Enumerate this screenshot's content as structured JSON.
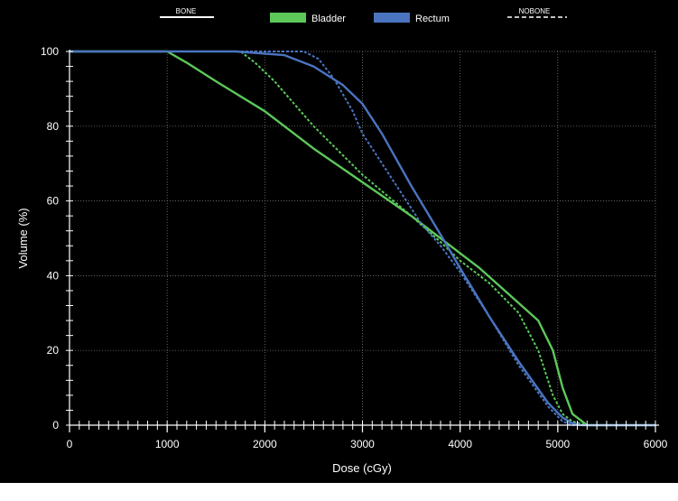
{
  "chart_data": {
    "type": "line",
    "xlabel": "Dose (cGy)",
    "ylabel": "Volume (%)",
    "xlim": [
      0,
      6000
    ],
    "ylim": [
      0,
      100
    ],
    "x_ticks": [
      0,
      1000,
      2000,
      3000,
      4000,
      5000,
      6000
    ],
    "y_ticks": [
      0,
      20,
      40,
      60,
      80,
      100
    ],
    "grid": true,
    "legend": {
      "placement": "top",
      "style_entries": [
        {
          "label": "BONE",
          "style": "solid"
        },
        {
          "label": "NOBONE",
          "style": "dashed"
        }
      ],
      "color_entries": [
        {
          "label": "Bladder",
          "color": "#5cc85a"
        },
        {
          "label": "Rectum",
          "color": "#4a74c0"
        }
      ]
    },
    "colors": {
      "background": "#000000",
      "axis": "#ffffff",
      "grid": "#8a8a8a",
      "bladder": "#5cc85a",
      "rectum": "#4a74c0"
    },
    "series": [
      {
        "organ": "Bladder",
        "plan": "BONE",
        "style": "solid",
        "color": "#5cc85a",
        "x": [
          0,
          1000,
          1200,
          1500,
          2000,
          2500,
          3000,
          3500,
          3900,
          4200,
          4500,
          4800,
          4950,
          5050,
          5150,
          5300,
          5400,
          6000
        ],
        "y": [
          100,
          100,
          97,
          92,
          84,
          74,
          65,
          56,
          48,
          42,
          35,
          28,
          20,
          10,
          3,
          0,
          0,
          0
        ]
      },
      {
        "organ": "Bladder",
        "plan": "NOBONE",
        "style": "dashed",
        "color": "#5cc85a",
        "x": [
          0,
          1750,
          1900,
          2100,
          2500,
          3000,
          3500,
          3800,
          4000,
          4300,
          4600,
          4800,
          4950,
          5050,
          5150,
          5300,
          6000
        ],
        "y": [
          100,
          100,
          97,
          92,
          80,
          67,
          56,
          49,
          44,
          38,
          30,
          20,
          8,
          3,
          1,
          0,
          0
        ]
      },
      {
        "organ": "Rectum",
        "plan": "BONE",
        "style": "solid",
        "color": "#4a74c0",
        "x": [
          0,
          1700,
          2200,
          2500,
          2800,
          3000,
          3200,
          3500,
          3800,
          4000,
          4300,
          4600,
          4900,
          5050,
          5150,
          5250,
          6000
        ],
        "y": [
          100,
          100,
          99,
          96,
          91,
          86,
          78,
          64,
          51,
          42,
          29,
          17,
          6,
          2,
          0.5,
          0,
          0
        ]
      },
      {
        "organ": "Rectum",
        "plan": "NOBONE",
        "style": "dashed",
        "color": "#4a74c0",
        "x": [
          0,
          2400,
          2550,
          2700,
          2900,
          3000,
          3300,
          3600,
          3800,
          4000,
          4300,
          4600,
          4900,
          5050,
          5150,
          6000
        ],
        "y": [
          100,
          100,
          98,
          93,
          84,
          78,
          66,
          54,
          48,
          41,
          29,
          16,
          5,
          1,
          0,
          0
        ]
      }
    ]
  }
}
